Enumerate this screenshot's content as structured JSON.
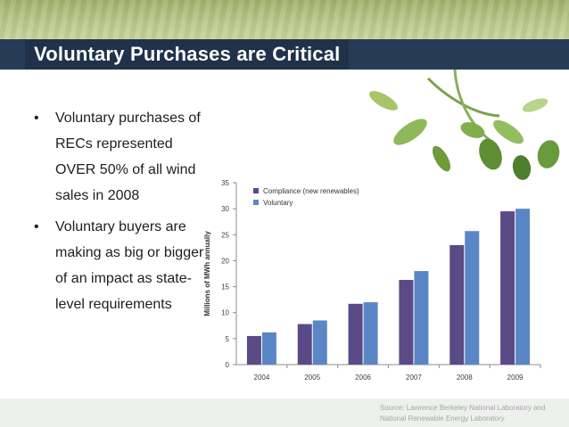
{
  "slide": {
    "title": "Voluntary Purchases are Critical",
    "bullets": [
      "Voluntary purchases of RECs represented OVER 50% of all wind sales in 2008",
      "Voluntary buyers are making as big or bigger of an impact as state-level requirements"
    ],
    "bullet_glyph": "•",
    "source": "Source: Lawrence Berkeley National Laboratory and National Renewable Energy Laboratory"
  },
  "colors": {
    "title_bar": "#263b55",
    "top_band": "#b1c37e",
    "compliance": "#5a4a86",
    "voluntary": "#5b86c6"
  },
  "chart_data": {
    "type": "bar",
    "categories": [
      "2004",
      "2005",
      "2006",
      "2007",
      "2008",
      "2009"
    ],
    "series": [
      {
        "name": "Compliance (new renewables)",
        "values": [
          5.5,
          7.8,
          11.7,
          16.3,
          23,
          29.5
        ]
      },
      {
        "name": "Voluntary",
        "values": [
          6.2,
          8.5,
          12,
          18,
          25.7,
          30
        ]
      }
    ],
    "ylabel": "Millions of MWh annually",
    "ylim": [
      0,
      35
    ],
    "yticks": [
      "0",
      "5",
      "10",
      "15",
      "20",
      "25",
      "30",
      "35"
    ],
    "legend_position": "top-left",
    "grid": false
  }
}
